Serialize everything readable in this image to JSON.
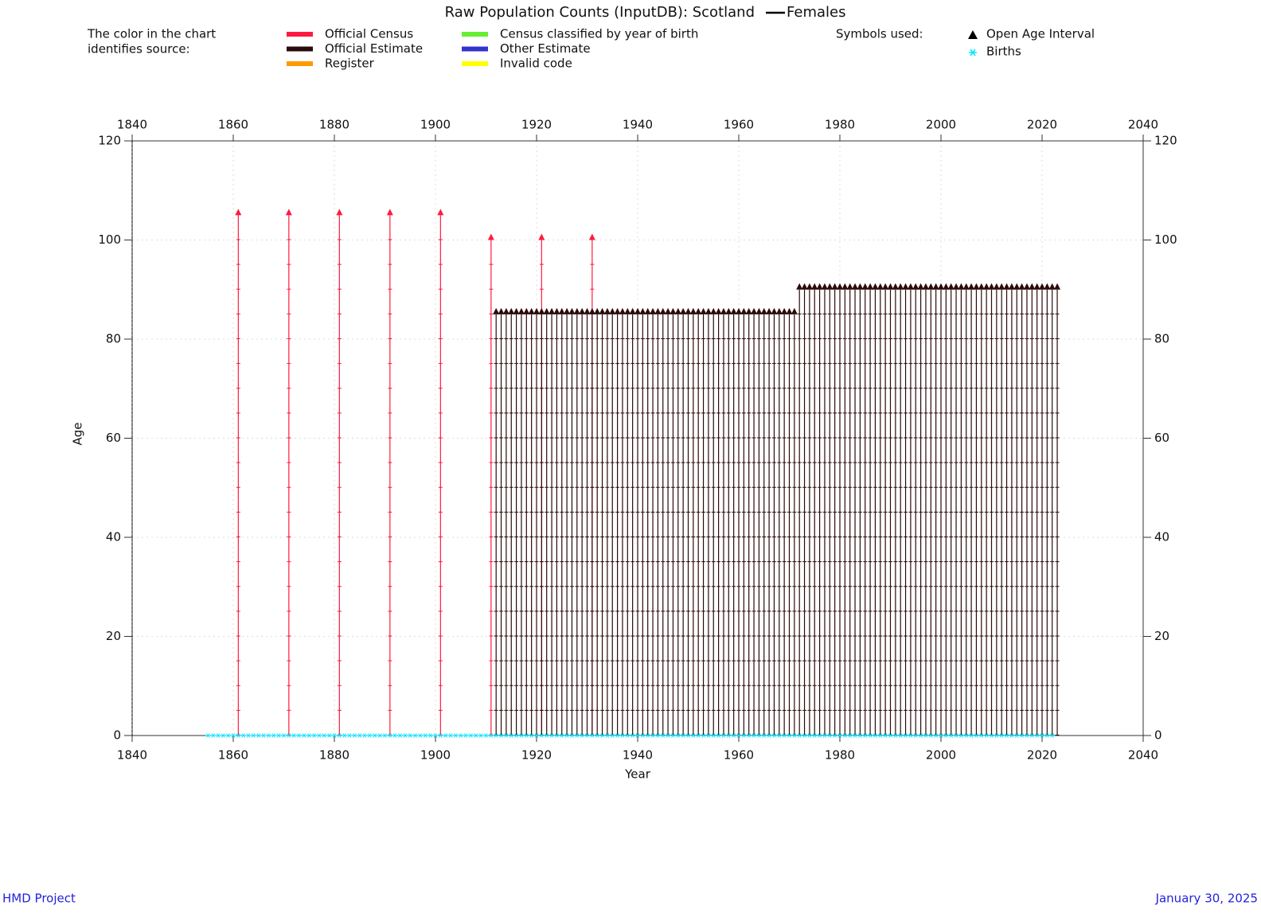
{
  "chart_data": {
    "type": "lexis",
    "title": "Raw Population Counts (InputDB): Scotland",
    "subtitle": "Females",
    "legend_title": [
      "The color in the chart",
      "identifies source:"
    ],
    "symbols_title": "Symbols used:",
    "open_age_label": "Open Age Interval",
    "xlabel": "Year",
    "ylabel": "Age",
    "xlim": [
      1840,
      2040
    ],
    "xticks": [
      1840,
      1860,
      1880,
      1900,
      1920,
      1940,
      1960,
      1980,
      2000,
      2020,
      2040
    ],
    "ylim": [
      0,
      120
    ],
    "yticks": [
      0,
      20,
      40,
      60,
      80,
      100,
      120
    ],
    "grid": true,
    "series": [
      {
        "name": "Official Census",
        "color": "#ff1a40",
        "x": [
          1861,
          1871,
          1881,
          1891,
          1901,
          1911,
          1921,
          1931
        ],
        "values": [
          105,
          105,
          105,
          105,
          105,
          100,
          100,
          100
        ]
      },
      {
        "name": "Official Estimate",
        "color": "#2a0a0a",
        "x": [
          1912,
          1913,
          1914,
          1915,
          1916,
          1917,
          1918,
          1919,
          1920,
          1921,
          1922,
          1923,
          1924,
          1925,
          1926,
          1927,
          1928,
          1929,
          1930,
          1931,
          1932,
          1933,
          1934,
          1935,
          1936,
          1937,
          1938,
          1939,
          1940,
          1941,
          1942,
          1943,
          1944,
          1945,
          1946,
          1947,
          1948,
          1949,
          1950,
          1951,
          1952,
          1953,
          1954,
          1955,
          1956,
          1957,
          1958,
          1959,
          1960,
          1961,
          1962,
          1963,
          1964,
          1965,
          1966,
          1967,
          1968,
          1969,
          1970,
          1971,
          1972,
          1973,
          1974,
          1975,
          1976,
          1977,
          1978,
          1979,
          1980,
          1981,
          1982,
          1983,
          1984,
          1985,
          1986,
          1987,
          1988,
          1989,
          1990,
          1991,
          1992,
          1993,
          1994,
          1995,
          1996,
          1997,
          1998,
          1999,
          2000,
          2001,
          2002,
          2003,
          2004,
          2005,
          2006,
          2007,
          2008,
          2009,
          2010,
          2011,
          2012,
          2013,
          2014,
          2015,
          2016,
          2017,
          2018,
          2019,
          2020,
          2021,
          2022,
          2023
        ],
        "values": [
          85,
          85,
          85,
          85,
          85,
          85,
          85,
          85,
          85,
          85,
          85,
          85,
          85,
          85,
          85,
          85,
          85,
          85,
          85,
          85,
          85,
          85,
          85,
          85,
          85,
          85,
          85,
          85,
          85,
          85,
          85,
          85,
          85,
          85,
          85,
          85,
          85,
          85,
          85,
          85,
          85,
          85,
          85,
          85,
          85,
          85,
          85,
          85,
          85,
          85,
          85,
          85,
          85,
          85,
          85,
          85,
          85,
          85,
          85,
          85,
          90,
          90,
          90,
          90,
          90,
          90,
          90,
          90,
          90,
          90,
          90,
          90,
          90,
          90,
          90,
          90,
          90,
          90,
          90,
          90,
          90,
          90,
          90,
          90,
          90,
          90,
          90,
          90,
          90,
          90,
          90,
          90,
          90,
          90,
          90,
          90,
          90,
          90,
          90,
          90,
          90,
          90,
          90,
          90,
          90,
          90,
          90,
          90,
          90,
          90,
          90,
          90
        ]
      },
      {
        "name": "Register",
        "color": "#ff9900",
        "x": [],
        "values": []
      },
      {
        "name": "Census classified by year of birth",
        "color": "#66ee33",
        "x": [],
        "values": []
      },
      {
        "name": "Other Estimate",
        "color": "#3333cc",
        "x": [],
        "values": []
      },
      {
        "name": "Invalid code",
        "color": "#ffff00",
        "x": [],
        "values": []
      }
    ],
    "births": {
      "name": "Births",
      "color": "#00e5ff",
      "x": [
        1855,
        1856,
        1857,
        1858,
        1859,
        1860,
        1861,
        1862,
        1863,
        1864,
        1865,
        1866,
        1867,
        1868,
        1869,
        1870,
        1871,
        1872,
        1873,
        1874,
        1875,
        1876,
        1877,
        1878,
        1879,
        1880,
        1881,
        1882,
        1883,
        1884,
        1885,
        1886,
        1887,
        1888,
        1889,
        1890,
        1891,
        1892,
        1893,
        1894,
        1895,
        1896,
        1897,
        1898,
        1899,
        1900,
        1901,
        1902,
        1903,
        1904,
        1905,
        1906,
        1907,
        1908,
        1909,
        1910,
        1911,
        1912,
        1913,
        1914,
        1915,
        1916,
        1917,
        1918,
        1919,
        1920,
        1921,
        1922,
        1923,
        1924,
        1925,
        1926,
        1927,
        1928,
        1929,
        1930,
        1931,
        1932,
        1933,
        1934,
        1935,
        1936,
        1937,
        1938,
        1939,
        1940,
        1941,
        1942,
        1943,
        1944,
        1945,
        1946,
        1947,
        1948,
        1949,
        1950,
        1951,
        1952,
        1953,
        1954,
        1955,
        1956,
        1957,
        1958,
        1959,
        1960,
        1961,
        1962,
        1963,
        1964,
        1965,
        1966,
        1967,
        1968,
        1969,
        1970,
        1971,
        1972,
        1973,
        1974,
        1975,
        1976,
        1977,
        1978,
        1979,
        1980,
        1981,
        1982,
        1983,
        1984,
        1985,
        1986,
        1987,
        1988,
        1989,
        1990,
        1991,
        1992,
        1993,
        1994,
        1995,
        1996,
        1997,
        1998,
        1999,
        2000,
        2001,
        2002,
        2003,
        2004,
        2005,
        2006,
        2007,
        2008,
        2009,
        2010,
        2011,
        2012,
        2013,
        2014,
        2015,
        2016,
        2017,
        2018,
        2019,
        2020,
        2021,
        2022
      ]
    },
    "footer_left": "HMD Project",
    "footer_right": "January 30, 2025"
  }
}
